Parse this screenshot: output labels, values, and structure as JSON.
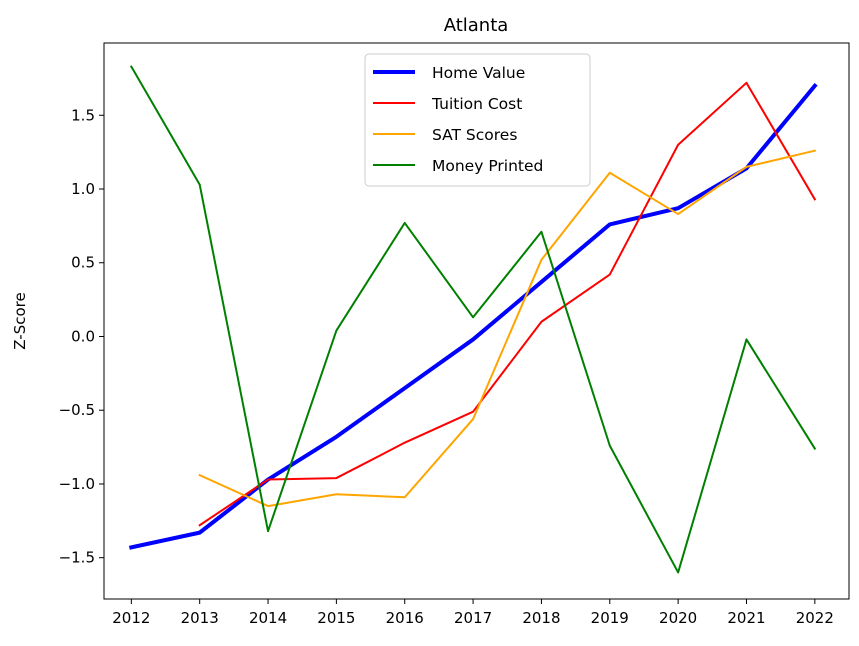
{
  "chart_data": {
    "type": "line",
    "title": "Atlanta",
    "xlabel": "",
    "ylabel": "Z-Score",
    "x": [
      2012,
      2013,
      2014,
      2015,
      2016,
      2017,
      2018,
      2019,
      2020,
      2021,
      2022
    ],
    "xlim": [
      2011.6,
      2022.5
    ],
    "ylim": [
      -1.78,
      1.99
    ],
    "yticks": [
      -1.5,
      -1.0,
      -0.5,
      0.0,
      0.5,
      1.0,
      1.5
    ],
    "ytick_labels": [
      "−1.5",
      "−1.0",
      "−0.5",
      "0.0",
      "0.5",
      "1.0",
      "1.5"
    ],
    "xtick_labels": [
      "2012",
      "2013",
      "2014",
      "2015",
      "2016",
      "2017",
      "2018",
      "2019",
      "2020",
      "2021",
      "2022"
    ],
    "grid": false,
    "legend_position": "upper center",
    "series": [
      {
        "name": "Home Value",
        "color": "#0000ff",
        "values": [
          -1.43,
          -1.33,
          -0.97,
          -0.68,
          -0.35,
          -0.02,
          0.37,
          0.76,
          0.87,
          1.14,
          1.7
        ]
      },
      {
        "name": "Tuition Cost",
        "color": "#ff0000",
        "values": [
          null,
          -1.28,
          -0.97,
          -0.96,
          -0.72,
          -0.51,
          0.1,
          0.42,
          1.3,
          1.72,
          0.93
        ]
      },
      {
        "name": "SAT Scores",
        "color": "#ffa500",
        "values": [
          null,
          -0.94,
          -1.15,
          -1.07,
          -1.09,
          -0.56,
          0.52,
          1.11,
          0.83,
          1.15,
          1.26
        ]
      },
      {
        "name": "Money Printed",
        "color": "#008000",
        "values": [
          1.83,
          1.03,
          -1.32,
          0.04,
          0.77,
          0.13,
          0.71,
          -0.74,
          -1.6,
          -0.02,
          -0.76
        ]
      }
    ]
  }
}
